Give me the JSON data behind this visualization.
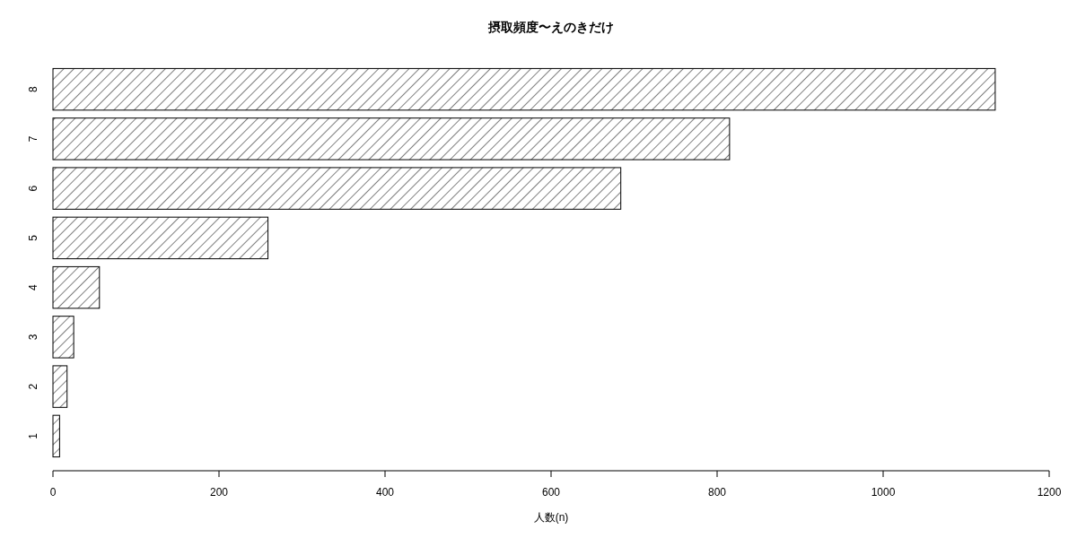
{
  "chart_data": {
    "type": "bar",
    "orientation": "horizontal",
    "title": "摂取頻度〜えのきだけ",
    "xlabel": "人数(n)",
    "categories": [
      "8",
      "7",
      "6",
      "5",
      "4",
      "3",
      "2",
      "1"
    ],
    "values": [
      1135,
      815,
      684,
      259,
      56,
      25,
      17,
      8
    ],
    "color": "#000000",
    "xlim": [
      0,
      1200
    ],
    "xticks": [
      0,
      200,
      400,
      600,
      800,
      1000,
      1200
    ],
    "grid": false
  }
}
